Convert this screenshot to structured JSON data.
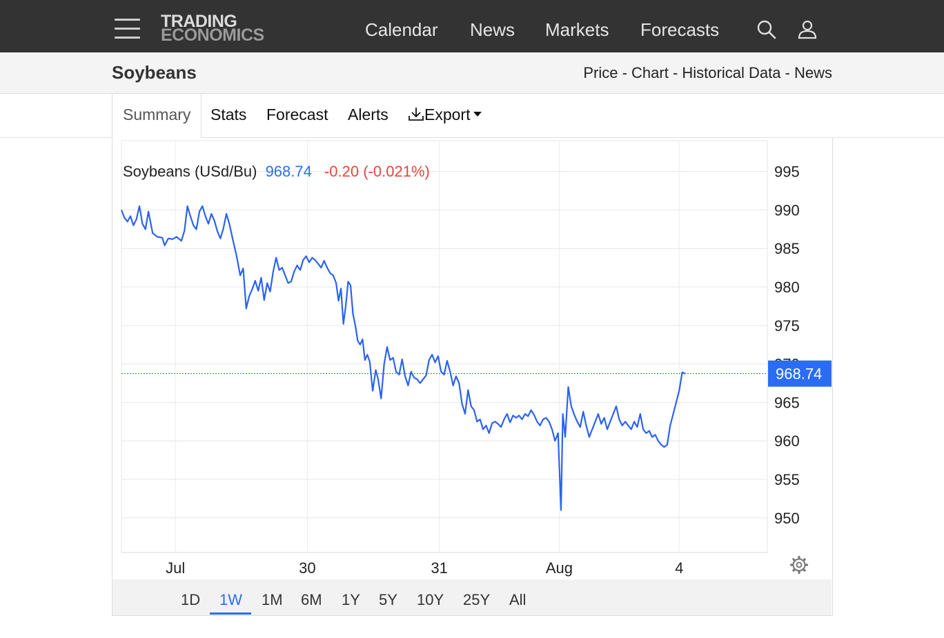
{
  "header": {
    "logo_line1": "TRADING",
    "logo_line2": "ECONOMICS",
    "nav": [
      "Calendar",
      "News",
      "Markets",
      "Forecasts"
    ],
    "icons": [
      "menu-icon",
      "search-icon",
      "user-icon"
    ]
  },
  "subheader": {
    "title": "Soybeans",
    "breadcrumb": "Price - Chart - Historical Data - News"
  },
  "tabs": {
    "summary": "Summary",
    "stats": "Stats",
    "forecast": "Forecast",
    "alerts": "Alerts",
    "export": "Export"
  },
  "legend": {
    "name": "Soybeans (USd/Bu)",
    "price": "968.74",
    "change": "-0.20 (-0.021%)"
  },
  "ranges": [
    "1D",
    "1W",
    "1M",
    "6M",
    "1Y",
    "5Y",
    "10Y",
    "25Y",
    "All"
  ],
  "active_range": "1W",
  "colors": {
    "line": "#2a62f0",
    "up_price": "#2a6df4",
    "down_change": "#e4463e",
    "header_bg": "#333333"
  },
  "chart_data": {
    "type": "line",
    "title": "Soybeans (USd/Bu)",
    "last_value_label": "968.74",
    "ylim": [
      945.5,
      999
    ],
    "yticks": [
      950,
      955,
      960,
      965,
      970,
      975,
      980,
      985,
      990,
      995
    ],
    "ytick_labels": [
      "950",
      "955",
      "960",
      "965",
      "970",
      "975",
      "980",
      "985",
      "990",
      "995"
    ],
    "xtick_labels": [
      "Jul",
      "30",
      "31",
      "Aug",
      "4"
    ],
    "xtick_positions": [
      0.9,
      3.1,
      5.3,
      7.3,
      9.3
    ],
    "xlim": [
      0,
      10.77
    ],
    "grid": true,
    "series": [
      {
        "values": [
          [
            0.0,
            990
          ],
          [
            0.05,
            989
          ],
          [
            0.1,
            988.5
          ],
          [
            0.15,
            989.2
          ],
          [
            0.2,
            988
          ],
          [
            0.25,
            988.8
          ],
          [
            0.3,
            990.5
          ],
          [
            0.35,
            988.2
          ],
          [
            0.4,
            987.5
          ],
          [
            0.45,
            989.8
          ],
          [
            0.52,
            987
          ],
          [
            0.6,
            986.5
          ],
          [
            0.68,
            986.4
          ],
          [
            0.72,
            985.4
          ],
          [
            0.78,
            986.3
          ],
          [
            0.85,
            986.2
          ],
          [
            0.92,
            986.5
          ],
          [
            1.0,
            986
          ],
          [
            1.05,
            987.3
          ],
          [
            1.1,
            990.5
          ],
          [
            1.15,
            989.2
          ],
          [
            1.2,
            988
          ],
          [
            1.25,
            987.5
          ],
          [
            1.3,
            989.8
          ],
          [
            1.35,
            990.5
          ],
          [
            1.4,
            989.2
          ],
          [
            1.45,
            988.2
          ],
          [
            1.5,
            989.5
          ],
          [
            1.55,
            988.6
          ],
          [
            1.6,
            987.2
          ],
          [
            1.65,
            986.3
          ],
          [
            1.7,
            987.6
          ],
          [
            1.75,
            989.5
          ],
          [
            1.8,
            988.2
          ],
          [
            1.85,
            986.4
          ],
          [
            1.92,
            984
          ],
          [
            1.98,
            981.5
          ],
          [
            2.03,
            982.4
          ],
          [
            2.08,
            977.2
          ],
          [
            2.13,
            978.8
          ],
          [
            2.18,
            979.7
          ],
          [
            2.23,
            980.8
          ],
          [
            2.28,
            979.5
          ],
          [
            2.33,
            981.2
          ],
          [
            2.38,
            978.3
          ],
          [
            2.43,
            980.5
          ],
          [
            2.48,
            979.4
          ],
          [
            2.53,
            982
          ],
          [
            2.58,
            983.8
          ],
          [
            2.63,
            982.2
          ],
          [
            2.68,
            982.5
          ],
          [
            2.73,
            981.5
          ],
          [
            2.78,
            980.5
          ],
          [
            2.83,
            980.7
          ],
          [
            2.88,
            982
          ],
          [
            2.93,
            982.8
          ],
          [
            2.98,
            982.2
          ],
          [
            3.03,
            983.5
          ],
          [
            3.08,
            984
          ],
          [
            3.13,
            983.2
          ],
          [
            3.18,
            983.8
          ],
          [
            3.23,
            983.5
          ],
          [
            3.28,
            983
          ],
          [
            3.33,
            982.5
          ],
          [
            3.38,
            983.4
          ],
          [
            3.43,
            982.5
          ],
          [
            3.48,
            981.8
          ],
          [
            3.53,
            981.5
          ],
          [
            3.58,
            980.5
          ],
          [
            3.62,
            978.2
          ],
          [
            3.66,
            979.8
          ],
          [
            3.7,
            975.2
          ],
          [
            3.74,
            977.5
          ],
          [
            3.78,
            980.7
          ],
          [
            3.82,
            980.2
          ],
          [
            3.86,
            976.5
          ],
          [
            3.9,
            975
          ],
          [
            3.94,
            973
          ],
          [
            3.98,
            972.5
          ],
          [
            4.02,
            973.2
          ],
          [
            4.06,
            970.5
          ],
          [
            4.1,
            971.2
          ],
          [
            4.14,
            970.3
          ],
          [
            4.19,
            966.5
          ],
          [
            4.24,
            969.2
          ],
          [
            4.28,
            968
          ],
          [
            4.33,
            965.5
          ],
          [
            4.38,
            970
          ],
          [
            4.43,
            972.2
          ],
          [
            4.48,
            970.5
          ],
          [
            4.53,
            970.8
          ],
          [
            4.58,
            969
          ],
          [
            4.63,
            968.6
          ],
          [
            4.68,
            970.6
          ],
          [
            4.73,
            968.4
          ],
          [
            4.78,
            967.2
          ],
          [
            4.83,
            969
          ],
          [
            4.88,
            968.2
          ],
          [
            4.93,
            968
          ],
          [
            4.98,
            967.5
          ],
          [
            5.03,
            968
          ],
          [
            5.08,
            968.5
          ],
          [
            5.13,
            970.5
          ],
          [
            5.18,
            971.2
          ],
          [
            5.23,
            970.2
          ],
          [
            5.28,
            971
          ],
          [
            5.33,
            969
          ],
          [
            5.38,
            968.6
          ],
          [
            5.43,
            970.4
          ],
          [
            5.48,
            969
          ],
          [
            5.53,
            967.2
          ],
          [
            5.58,
            968.4
          ],
          [
            5.63,
            967.5
          ],
          [
            5.68,
            964.8
          ],
          [
            5.73,
            963.5
          ],
          [
            5.78,
            966.6
          ],
          [
            5.83,
            964.5
          ],
          [
            5.88,
            964
          ],
          [
            5.93,
            962.5
          ],
          [
            5.98,
            962.8
          ],
          [
            6.03,
            961.5
          ],
          [
            6.08,
            962
          ],
          [
            6.13,
            961
          ],
          [
            6.18,
            962.3
          ],
          [
            6.23,
            962.5
          ],
          [
            6.28,
            962.2
          ],
          [
            6.33,
            961.8
          ],
          [
            6.38,
            962.8
          ],
          [
            6.43,
            963.5
          ],
          [
            6.48,
            962.4
          ],
          [
            6.53,
            963.3
          ],
          [
            6.58,
            963
          ],
          [
            6.63,
            963.3
          ],
          [
            6.68,
            962.8
          ],
          [
            6.73,
            963.5
          ],
          [
            6.78,
            963.2
          ],
          [
            6.83,
            964
          ],
          [
            6.88,
            963.4
          ],
          [
            6.93,
            962.5
          ],
          [
            6.98,
            962
          ],
          [
            7.03,
            962.8
          ],
          [
            7.08,
            963
          ],
          [
            7.13,
            962.5
          ],
          [
            7.18,
            961.5
          ],
          [
            7.23,
            960
          ],
          [
            7.28,
            961
          ],
          [
            7.33,
            951
          ],
          [
            7.36,
            963.5
          ],
          [
            7.4,
            960.5
          ],
          [
            7.45,
            967
          ],
          [
            7.5,
            964.5
          ],
          [
            7.55,
            963.4
          ],
          [
            7.6,
            962.5
          ],
          [
            7.65,
            961.8
          ],
          [
            7.7,
            963.8
          ],
          [
            7.75,
            962
          ],
          [
            7.8,
            960.5
          ],
          [
            7.85,
            961.5
          ],
          [
            7.9,
            962.5
          ],
          [
            7.95,
            963.5
          ],
          [
            8.0,
            962.2
          ],
          [
            8.05,
            963
          ],
          [
            8.1,
            961.5
          ],
          [
            8.15,
            962.5
          ],
          [
            8.2,
            963.5
          ],
          [
            8.25,
            964.5
          ],
          [
            8.3,
            962.8
          ],
          [
            8.35,
            962
          ],
          [
            8.4,
            962.5
          ],
          [
            8.45,
            962
          ],
          [
            8.5,
            961.5
          ],
          [
            8.55,
            962.5
          ],
          [
            8.6,
            961.8
          ],
          [
            8.65,
            963.5
          ],
          [
            8.7,
            961.5
          ],
          [
            8.75,
            961
          ],
          [
            8.8,
            961.3
          ],
          [
            8.85,
            960.5
          ],
          [
            8.9,
            960.8
          ],
          [
            8.95,
            960
          ],
          [
            9.0,
            959.5
          ],
          [
            9.05,
            959.2
          ],
          [
            9.1,
            959.5
          ],
          [
            9.15,
            962
          ],
          [
            9.2,
            963.5
          ],
          [
            9.25,
            965
          ],
          [
            9.3,
            966.5
          ],
          [
            9.35,
            968.9
          ],
          [
            9.4,
            968.74
          ]
        ]
      }
    ]
  }
}
